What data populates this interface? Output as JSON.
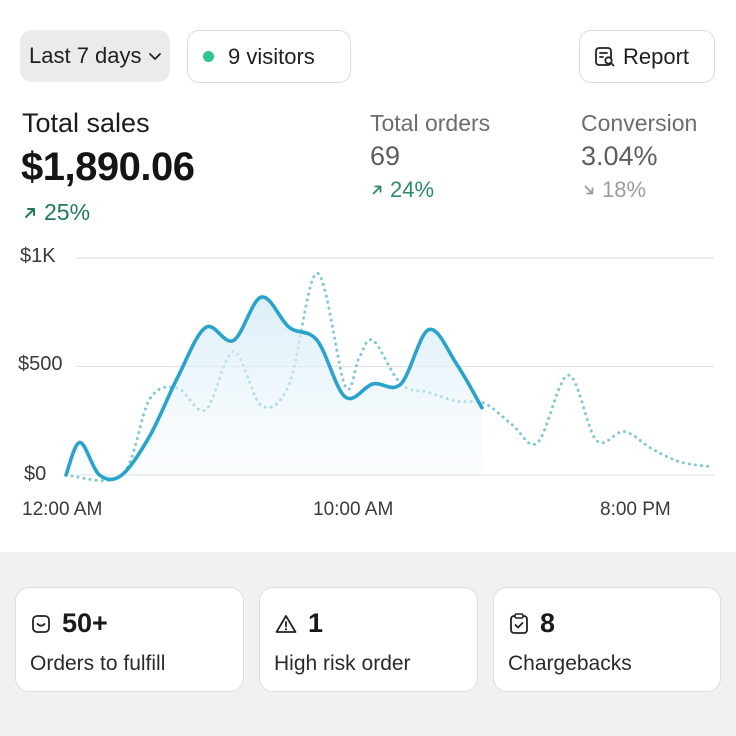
{
  "header": {
    "range_label": "Last 7 days",
    "visitors_label": "9 visitors",
    "report_label": "Report"
  },
  "metrics": {
    "total_sales": {
      "label": "Total sales",
      "value": "$1,890.06",
      "change": "25%",
      "trend": "up"
    },
    "total_orders": {
      "label": "Total orders",
      "value": "69",
      "change": "24%",
      "trend": "up"
    },
    "conversion": {
      "label": "Conversion",
      "value": "3.04%",
      "change": "18%",
      "trend": "down"
    }
  },
  "chart_data": {
    "type": "line",
    "y_ticks": [
      "$1K",
      "$500",
      "$0"
    ],
    "x_ticks": [
      "12:00 AM",
      "10:00 AM",
      "8:00 PM"
    ],
    "ylim": [
      0,
      1000
    ],
    "xlim": [
      0,
      23
    ],
    "grid": true,
    "series": [
      {
        "style": "solid",
        "color": "#2aa3cc",
        "x": [
          0,
          0.5,
          1.2,
          2,
          3,
          4,
          5,
          6,
          7,
          8,
          9,
          10,
          11,
          12,
          13,
          14,
          14.9
        ],
        "y": [
          0,
          150,
          0,
          0,
          180,
          450,
          680,
          620,
          820,
          680,
          620,
          360,
          420,
          420,
          670,
          510,
          310
        ]
      },
      {
        "style": "dotted",
        "color": "#7fc6dd",
        "x": [
          0,
          2,
          3,
          4,
          5,
          6,
          7,
          8,
          9,
          10,
          10.5,
          11,
          12,
          13,
          14,
          15,
          16,
          16.9,
          18,
          19,
          20,
          21,
          22,
          23
        ],
        "y": [
          0,
          0,
          350,
          400,
          300,
          570,
          320,
          420,
          930,
          410,
          540,
          620,
          420,
          380,
          340,
          330,
          230,
          150,
          460,
          160,
          200,
          120,
          60,
          40
        ]
      }
    ]
  },
  "tiles": [
    {
      "value": "50+",
      "label": "Orders to fulfill"
    },
    {
      "value": "1",
      "label": "High risk order"
    },
    {
      "value": "8",
      "label": "Chargebacks"
    }
  ]
}
